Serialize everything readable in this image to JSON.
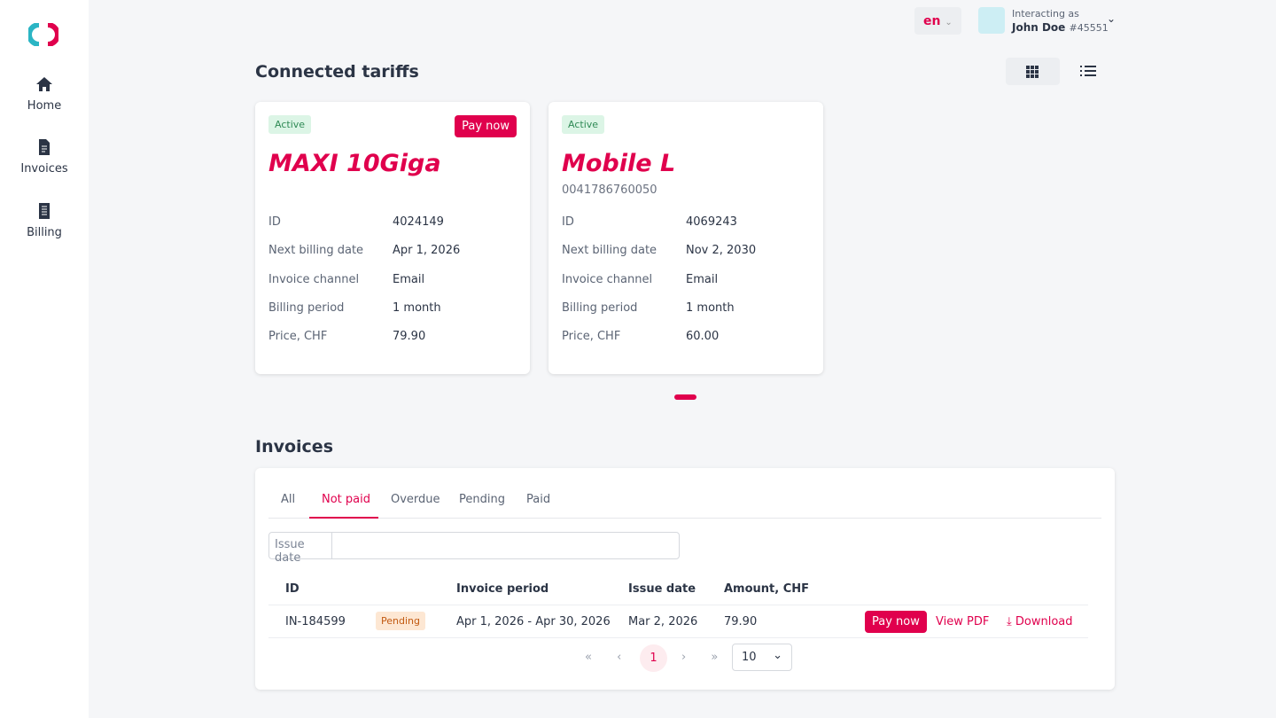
{
  "sidebar": {
    "nav": [
      "Home",
      "Invoices",
      "Billing"
    ]
  },
  "header": {
    "language": "en",
    "user_caption": "Interacting as",
    "user_name": "John Doe",
    "user_id": "#45551"
  },
  "tariffs": {
    "title": "Connected tariffs",
    "cards": [
      {
        "status": "Active",
        "action": "Pay now",
        "name": "MAXI 10Giga",
        "fields": [
          [
            "ID",
            "4024149"
          ],
          [
            "Next billing date",
            "Apr 1, 2026"
          ],
          [
            "Invoice channel",
            "Email"
          ],
          [
            "Billing period",
            "1 month"
          ],
          [
            "Price, CHF",
            "79.90"
          ]
        ]
      },
      {
        "status": "Active",
        "name": "Mobile L",
        "phone": "0041786760050",
        "fields": [
          [
            "ID",
            "4069243"
          ],
          [
            "Next billing date",
            "Nov 2, 2030"
          ],
          [
            "Invoice channel",
            "Email"
          ],
          [
            "Billing period",
            "1 month"
          ],
          [
            "Price, CHF",
            "60.00"
          ]
        ]
      }
    ]
  },
  "invoices": {
    "title": "Invoices",
    "tabs": [
      "All",
      "Not paid",
      "Overdue",
      "Pending",
      "Paid"
    ],
    "active_tab": 1,
    "filter_label": "Issue date",
    "headers": [
      "ID",
      "Invoice period",
      "Issue date",
      "Amount, CHF"
    ],
    "rows": [
      {
        "id": "IN-184599",
        "status": "Pending",
        "period": "Apr 1, 2026 - Apr 30, 2026",
        "issue_date": "Mar 2, 2026",
        "amount": "79.90",
        "actions": [
          "Pay now",
          "View PDF",
          "Download"
        ]
      }
    ],
    "pagination": {
      "page": "1",
      "page_size": "10"
    }
  }
}
